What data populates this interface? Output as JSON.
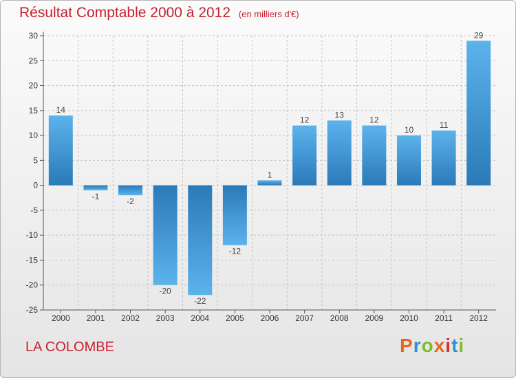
{
  "title": "Résultat Comptable 2000 à 2012",
  "subtitle": "(en milliers d'€)",
  "location": "LA COLOMBE",
  "logo": {
    "text": "Proxiti",
    "colors": [
      "#e8671e",
      "#2d8fd5",
      "#7dbb2e",
      "#e8671e",
      "#d8322d",
      "#2d8fd5",
      "#7dbb2e"
    ]
  },
  "colors": {
    "accent": "#c8202f",
    "bar_dark": "#2a7ab8",
    "bar_light": "#5cb3ec"
  },
  "chart_data": {
    "type": "bar",
    "categories": [
      "2000",
      "2001",
      "2002",
      "2003",
      "2004",
      "2005",
      "2006",
      "2007",
      "2008",
      "2009",
      "2010",
      "2011",
      "2012"
    ],
    "values": [
      14,
      -1,
      -2,
      -20,
      -22,
      -12,
      1,
      12,
      13,
      12,
      10,
      11,
      29
    ],
    "ylim": [
      -25,
      30
    ],
    "yticks": [
      30,
      25,
      20,
      15,
      10,
      5,
      0,
      -5,
      -10,
      -15,
      -20,
      -25
    ],
    "grid": true,
    "xlabel": "",
    "ylabel": ""
  }
}
